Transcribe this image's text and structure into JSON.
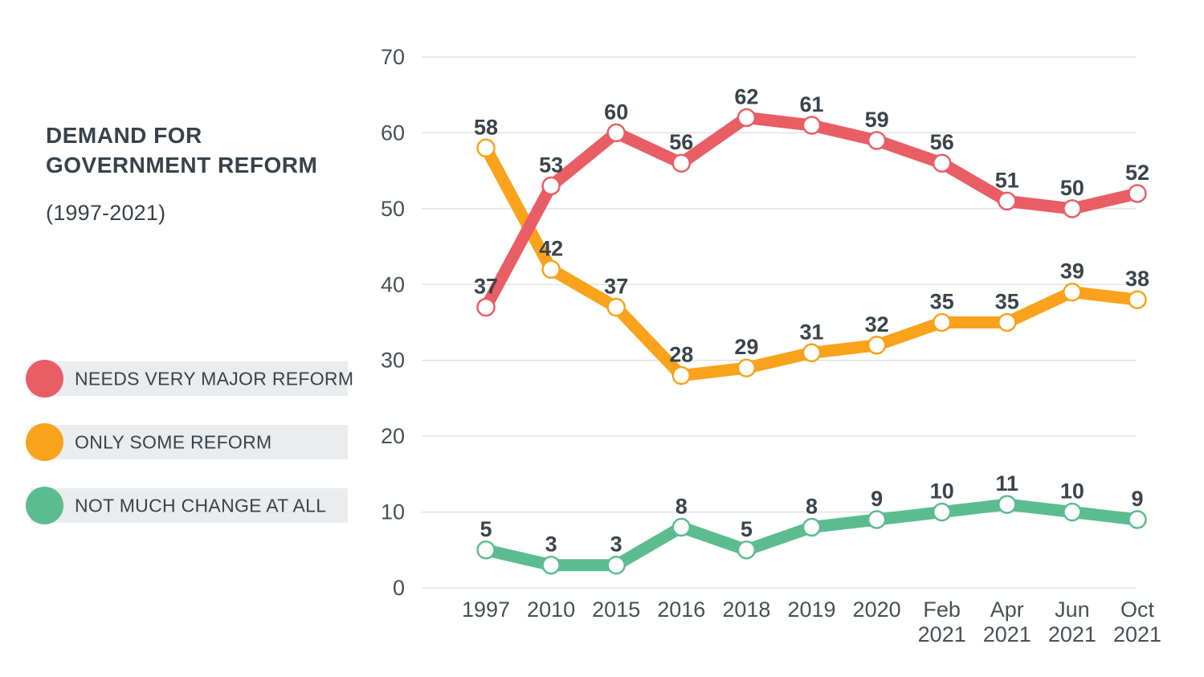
{
  "header": {
    "title": "DEMAND FOR GOVERNMENT REFORM",
    "subtitle": "(1997-2021)"
  },
  "legend": [
    {
      "label": "NEEDS VERY MAJOR REFORM",
      "color": "#E95D65"
    },
    {
      "label": "ONLY SOME REFORM",
      "color": "#F9A21B"
    },
    {
      "label": "NOT MUCH CHANGE AT ALL",
      "color": "#5BBC8F"
    }
  ],
  "colors": {
    "title_text": "#39424A",
    "axis_text": "#475056",
    "label_text": "#3B444C",
    "legend_text": "#39434C",
    "legend_bg": "#EBECED",
    "grid": "#E2E2E2",
    "page_bg": "#FFFFFF"
  },
  "chart_data": {
    "type": "line",
    "title": "DEMAND FOR GOVERNMENT REFORM",
    "subtitle": "(1997-2021)",
    "categories": [
      "1997",
      "2010",
      "2015",
      "2016",
      "2018",
      "2019",
      "2020",
      "Feb 2021",
      "Apr 2021",
      "Jun 2021",
      "Oct 2021"
    ],
    "series": [
      {
        "name": "NEEDS VERY MAJOR REFORM",
        "color": "#E95D65",
        "z": 2,
        "values": [
          37,
          53,
          60,
          56,
          62,
          61,
          59,
          56,
          51,
          50,
          52
        ]
      },
      {
        "name": "ONLY SOME REFORM",
        "color": "#F9A21B",
        "z": 0,
        "values": [
          58,
          42,
          37,
          28,
          29,
          31,
          32,
          35,
          35,
          39,
          38
        ]
      },
      {
        "name": "NOT MUCH CHANGE AT ALL",
        "color": "#5BBC8F",
        "z": 1,
        "values": [
          5,
          3,
          3,
          8,
          5,
          8,
          9,
          10,
          11,
          10,
          9
        ]
      }
    ],
    "xlabel": "",
    "ylabel": "",
    "y_ticks": [
      0,
      10,
      20,
      30,
      40,
      50,
      60,
      70
    ],
    "ylim": [
      0,
      70
    ],
    "grid": "horizontal",
    "legend_position": "left",
    "data_labels": true,
    "markers": "white-filled circles with colored ring"
  }
}
